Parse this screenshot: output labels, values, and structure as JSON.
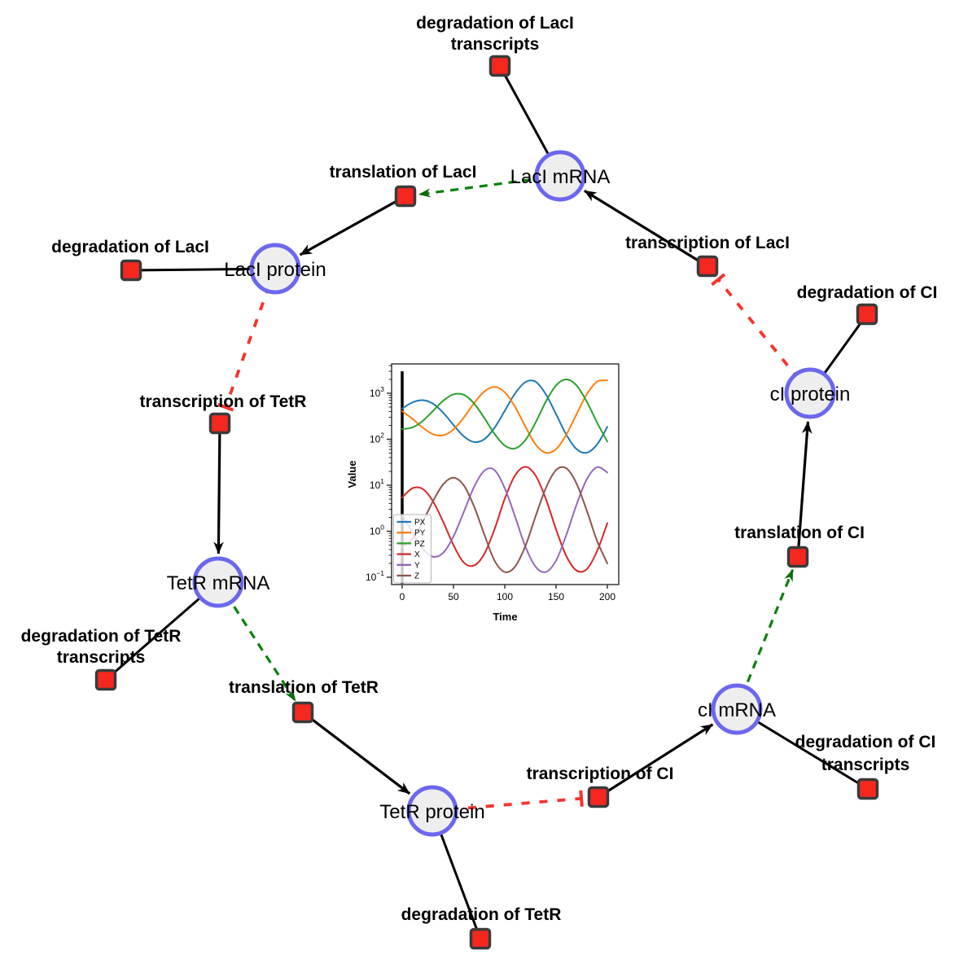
{
  "diagram": {
    "species": [
      {
        "id": "laci-mrna",
        "label": "LacI mRNA"
      },
      {
        "id": "laci-protein",
        "label": "LacI protein"
      },
      {
        "id": "tetr-mrna",
        "label": "TetR mRNA"
      },
      {
        "id": "tetr-protein",
        "label": "TetR protein"
      },
      {
        "id": "ci-mrna",
        "label": "cI mRNA"
      },
      {
        "id": "ci-protein",
        "label": "cI protein"
      }
    ],
    "reactions": [
      {
        "id": "deg-laci-transcripts",
        "label_lines": [
          "degradation of LacI",
          "transcripts"
        ]
      },
      {
        "id": "translation-laci",
        "label_lines": [
          "translation of LacI"
        ]
      },
      {
        "id": "transcription-laci",
        "label_lines": [
          "transcription of LacI"
        ]
      },
      {
        "id": "deg-laci",
        "label_lines": [
          "degradation of LacI"
        ]
      },
      {
        "id": "transcription-tetr",
        "label_lines": [
          "transcription of TetR"
        ]
      },
      {
        "id": "deg-tetr-transcripts",
        "label_lines": [
          "degradation of TetR",
          "transcripts"
        ]
      },
      {
        "id": "translation-tetr",
        "label_lines": [
          "translation of TetR"
        ]
      },
      {
        "id": "deg-tetr",
        "label_lines": [
          "degradation of TetR"
        ]
      },
      {
        "id": "transcription-ci",
        "label_lines": [
          "transcription of CI"
        ]
      },
      {
        "id": "deg-ci-transcripts",
        "label_lines": [
          "degradation of CI",
          "transcripts"
        ]
      },
      {
        "id": "translation-ci",
        "label_lines": [
          "translation of CI"
        ]
      },
      {
        "id": "deg-ci",
        "label_lines": [
          "degradation of CI"
        ]
      }
    ],
    "edges": [
      {
        "source": "laci-mrna",
        "target": "deg-laci-transcripts",
        "kind": "reactant"
      },
      {
        "source": "laci-mrna",
        "target": "translation-laci",
        "kind": "modifier"
      },
      {
        "source": "transcription-laci",
        "target": "laci-mrna",
        "kind": "product"
      },
      {
        "source": "translation-laci",
        "target": "laci-protein",
        "kind": "product"
      },
      {
        "source": "laci-protein",
        "target": "deg-laci",
        "kind": "reactant"
      },
      {
        "source": "laci-protein",
        "target": "transcription-tetr",
        "kind": "inhibition"
      },
      {
        "source": "transcription-tetr",
        "target": "tetr-mrna",
        "kind": "product"
      },
      {
        "source": "tetr-mrna",
        "target": "deg-tetr-transcripts",
        "kind": "reactant"
      },
      {
        "source": "tetr-mrna",
        "target": "translation-tetr",
        "kind": "modifier"
      },
      {
        "source": "translation-tetr",
        "target": "tetr-protein",
        "kind": "product"
      },
      {
        "source": "tetr-protein",
        "target": "deg-tetr",
        "kind": "reactant"
      },
      {
        "source": "tetr-protein",
        "target": "transcription-ci",
        "kind": "inhibition"
      },
      {
        "source": "transcription-ci",
        "target": "ci-mrna",
        "kind": "product"
      },
      {
        "source": "ci-mrna",
        "target": "deg-ci-transcripts",
        "kind": "reactant"
      },
      {
        "source": "ci-mrna",
        "target": "translation-ci",
        "kind": "modifier"
      },
      {
        "source": "translation-ci",
        "target": "ci-protein",
        "kind": "product"
      },
      {
        "source": "ci-protein",
        "target": "deg-ci",
        "kind": "reactant"
      },
      {
        "source": "ci-protein",
        "target": "transcription-laci",
        "kind": "inhibition"
      }
    ],
    "colors": {
      "species_fill": "#eeeeee",
      "species_stroke": "#6b68ee",
      "reaction_fill": "#f5271f",
      "reaction_stroke": "#3a3a3a",
      "edge": "#000000",
      "modifier": "#0a800a",
      "modifier_arrow": "#0b6b0b",
      "inhibition": "#f8322c"
    }
  },
  "chart_data": {
    "type": "line",
    "title": "",
    "xlabel": "Time",
    "ylabel": "Value",
    "x_range": [
      0,
      200
    ],
    "xticks": [
      0,
      50,
      100,
      150,
      200
    ],
    "y_scale": "log",
    "ytick_exponents": [
      -1,
      0,
      1,
      2,
      3
    ],
    "ylim_log": [
      -1.16,
      3.63
    ],
    "grid": false,
    "legend_position": "lower left",
    "vline_x": 0,
    "x": [
      0,
      10,
      20,
      30,
      40,
      50,
      60,
      70,
      80,
      90,
      100,
      110,
      120,
      130,
      140,
      150,
      160,
      170,
      180,
      190,
      200
    ],
    "series": [
      {
        "name": "PX",
        "color": "#1f77b4",
        "values": [
          465,
          632,
          708,
          594,
          377,
          204,
          116,
          87,
          100,
          177,
          415,
          986,
          1738,
          1786,
          950,
          352,
          126,
          61,
          51,
          77,
          186
        ]
      },
      {
        "name": "PY",
        "color": "#ff7f0e",
        "values": [
          408,
          278,
          179,
          129,
          122,
          163,
          295,
          603,
          1087,
          1368,
          1050,
          509,
          191,
          77,
          51,
          61,
          126,
          352,
          950,
          1786,
          1897
        ]
      },
      {
        "name": "PZ",
        "color": "#2ca02c",
        "values": [
          167,
          180,
          249,
          412,
          687,
          948,
          923,
          603,
          292,
          131,
          73,
          63,
          95,
          230,
          656,
          1476,
          1995,
          1476,
          656,
          230,
          89
        ]
      },
      {
        "name": "X",
        "color": "#d62728",
        "values": [
          5.4,
          8.6,
          8.3,
          4.5,
          1.6,
          0.5,
          0.21,
          0.18,
          0.32,
          1.1,
          5.1,
          16.3,
          25.1,
          16.3,
          5.1,
          1.1,
          0.29,
          0.14,
          0.15,
          0.37,
          1.5
        ]
      },
      {
        "name": "Y",
        "color": "#9467bd",
        "values": [
          2.3,
          0.95,
          0.42,
          0.28,
          0.34,
          0.77,
          2.6,
          9.1,
          20.6,
          21.4,
          8.6,
          2.1,
          0.47,
          0.17,
          0.13,
          0.23,
          0.83,
          3.8,
          13.5,
          24.7,
          19.0
        ]
      },
      {
        "name": "Z",
        "color": "#8c564b",
        "values": [
          0.45,
          0.69,
          1.6,
          4.5,
          10.5,
          14.6,
          10.0,
          3.5,
          0.86,
          0.23,
          0.13,
          0.17,
          0.47,
          2.1,
          8.6,
          21.4,
          23.4,
          10.9,
          2.8,
          0.62,
          0.2
        ]
      }
    ]
  }
}
